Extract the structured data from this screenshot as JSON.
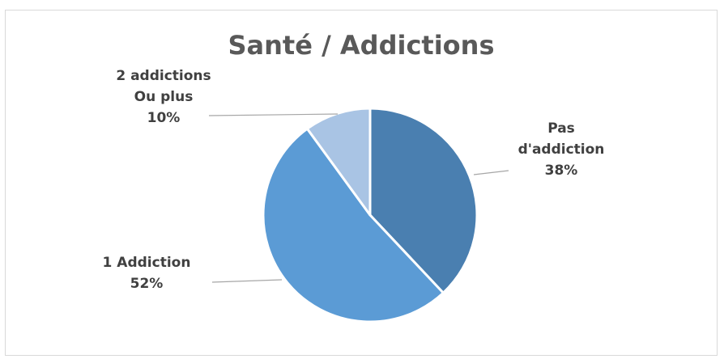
{
  "chart_data": {
    "type": "pie",
    "title": "Santé / Addictions",
    "start_angle_deg": 0,
    "direction": "clockwise",
    "slices": [
      {
        "label_lines": [
          "Pas",
          "d'addiction"
        ],
        "value": 38,
        "value_label": "38%",
        "color": "#4a7fb0"
      },
      {
        "label_lines": [
          "1 Addiction"
        ],
        "value": 52,
        "value_label": "52%",
        "color": "#5b9bd5"
      },
      {
        "label_lines": [
          "2 addictions",
          "Ou plus"
        ],
        "value": 10,
        "value_label": "10%",
        "color": "#a9c4e4"
      }
    ]
  }
}
